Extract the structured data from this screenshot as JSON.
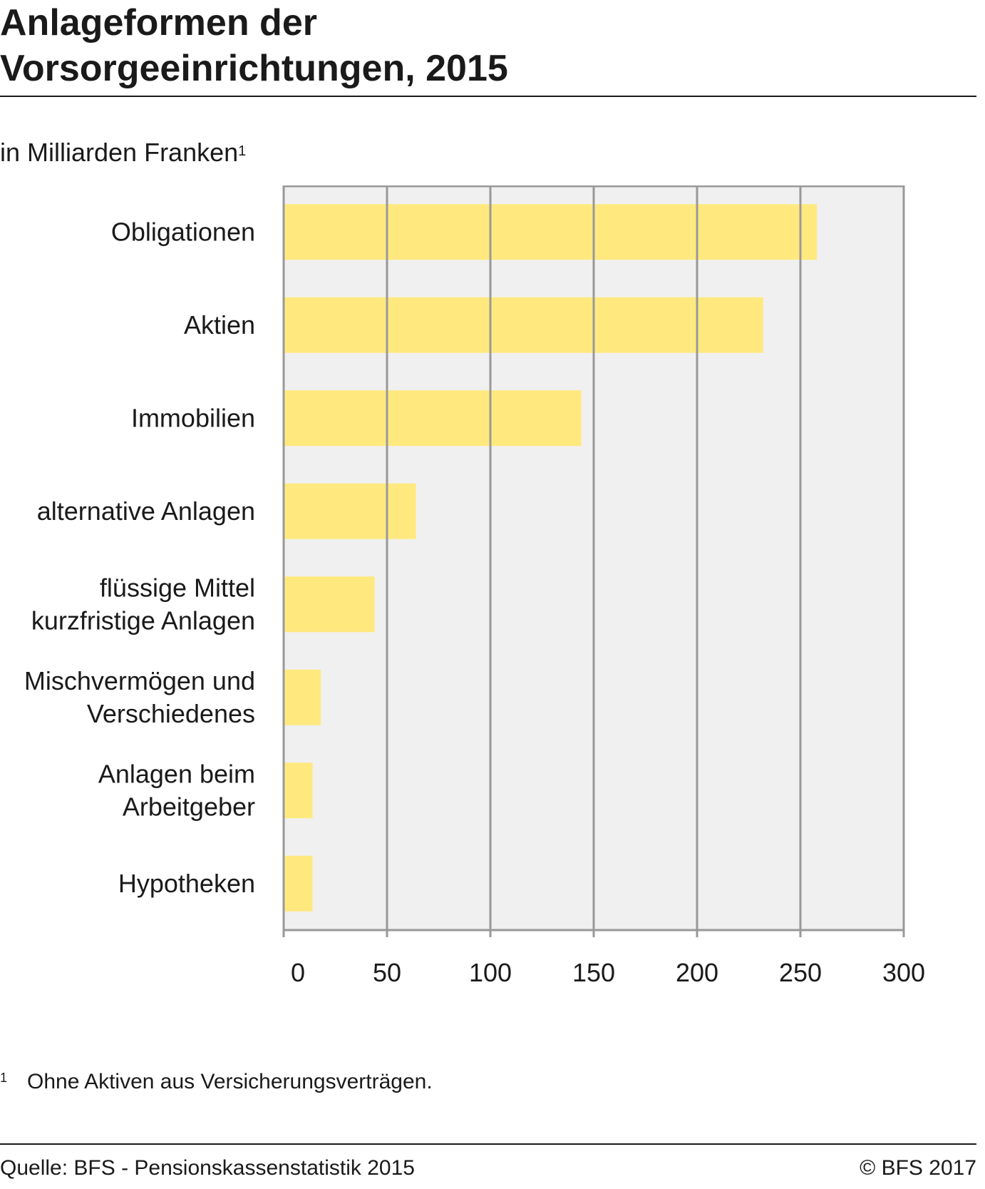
{
  "header": {
    "title_line1": "Anlageformen der",
    "title_line2": "Vorsorgeeinrichtungen, 2015",
    "unit": "in Milliarden Franken",
    "unit_footnote_mark": "1"
  },
  "footnote": {
    "mark": "1",
    "text": "Ohne Aktiven aus Versicherungsverträgen."
  },
  "footer": {
    "source": "Quelle: BFS - Pensionskassenstatistik 2015",
    "copyright": "© BFS 2017"
  },
  "colors": {
    "bar": "#FFE97F",
    "plot_background": "#F0F0F0",
    "grid": "#999999",
    "text": "#1a1a1a"
  },
  "chart_data": {
    "type": "bar",
    "orientation": "horizontal",
    "title": "Anlageformen der Vorsorgeeinrichtungen, 2015",
    "unit_label": "in Milliarden Franken",
    "categories": [
      [
        "Obligationen"
      ],
      [
        "Aktien"
      ],
      [
        "Immobilien"
      ],
      [
        "alternative Anlagen"
      ],
      [
        "flüssige Mittel",
        "kurzfristige Anlagen"
      ],
      [
        "Mischvermögen und",
        "Verschiedenes"
      ],
      [
        "Anlagen beim",
        "Arbeitgeber"
      ],
      [
        "Hypotheken"
      ]
    ],
    "values": [
      258,
      232,
      144,
      64,
      44,
      18,
      14,
      14
    ],
    "xlim": [
      0,
      300
    ],
    "xticks": [
      "0",
      "50",
      "100",
      "150",
      "200",
      "250",
      "300"
    ],
    "grid": true,
    "legend": "none"
  }
}
